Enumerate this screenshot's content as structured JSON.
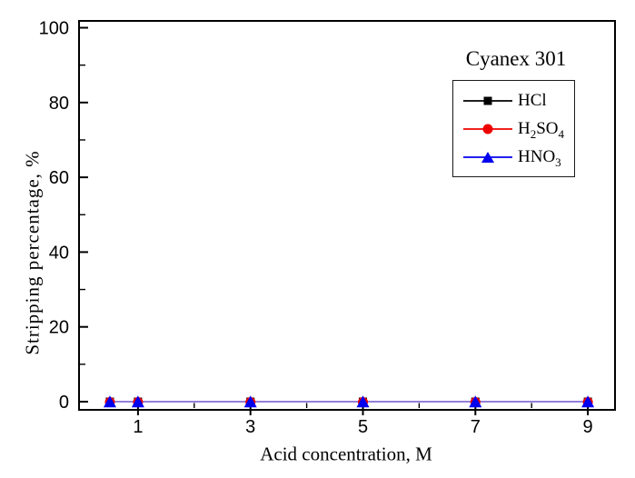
{
  "chart_data": {
    "type": "line",
    "title": "",
    "legend_title": "Cyanex 301",
    "xlabel": "Acid concentration, M",
    "ylabel": "Stripping percentage, %",
    "x": [
      0.5,
      1,
      3,
      5,
      7,
      9
    ],
    "series": [
      {
        "name": "HCl",
        "label_parts": [
          [
            "t",
            "HCl"
          ]
        ],
        "color": "#000000",
        "marker": "square",
        "values": [
          0,
          0,
          0,
          0,
          0,
          0
        ]
      },
      {
        "name": "H2SO4",
        "label_parts": [
          [
            "t",
            "H"
          ],
          [
            "s",
            "2"
          ],
          [
            "t",
            "SO"
          ],
          [
            "s",
            "4"
          ]
        ],
        "color": "#ee0000",
        "marker": "circle",
        "values": [
          0,
          0,
          0,
          0,
          0,
          0
        ]
      },
      {
        "name": "HNO3",
        "label_parts": [
          [
            "t",
            "HNO"
          ],
          [
            "s",
            "3"
          ]
        ],
        "color": "#0000ee",
        "marker": "triangle",
        "line_render_color": "#8f8ff4",
        "values": [
          0,
          0,
          0,
          0,
          0,
          0
        ]
      }
    ],
    "xticks": [
      1,
      3,
      5,
      7,
      9
    ],
    "xminorticks": [
      2,
      4,
      6,
      8
    ],
    "yticks": [
      0,
      20,
      40,
      60,
      80,
      100
    ],
    "yminorticks": [
      10,
      30,
      50,
      70,
      90
    ],
    "xlim": [
      0,
      9.5
    ],
    "ylim": [
      -2.2,
      101.8
    ],
    "grid": false,
    "legend_position": "top-right-inside",
    "axis_color": "#000000",
    "background_color": "#ffffff"
  }
}
